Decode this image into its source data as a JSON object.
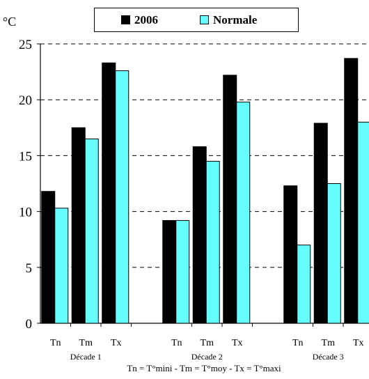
{
  "chart_data": {
    "type": "bar",
    "unit": "°C",
    "ylim": [
      0,
      25
    ],
    "yticks": [
      0,
      5,
      10,
      15,
      20,
      25
    ],
    "grid": "horizontal dashed",
    "legend_position": "top",
    "categories": [
      "Tn",
      "Tm",
      "Tx",
      "Tn",
      "Tm",
      "Tx",
      "Tn",
      "Tm",
      "Tx"
    ],
    "groups": [
      {
        "label": "Décade 1",
        "categories": [
          "Tn",
          "Tm",
          "Tx"
        ]
      },
      {
        "label": "Décade 2",
        "categories": [
          "Tn",
          "Tm",
          "Tx"
        ]
      },
      {
        "label": "Décade 3",
        "categories": [
          "Tn",
          "Tm",
          "Tx"
        ]
      }
    ],
    "series": [
      {
        "name": "2006",
        "color": "#000000",
        "values": [
          11.8,
          17.5,
          23.3,
          9.2,
          15.8,
          22.2,
          12.3,
          17.9,
          23.7
        ]
      },
      {
        "name": "Normale",
        "color": "#66ffff",
        "values": [
          10.3,
          16.5,
          22.6,
          9.2,
          14.5,
          19.8,
          7.0,
          12.5,
          18.0
        ]
      }
    ],
    "footnote": "Tn = T°mini  -  Tm = T°moy  -  Tx = T°maxi"
  }
}
